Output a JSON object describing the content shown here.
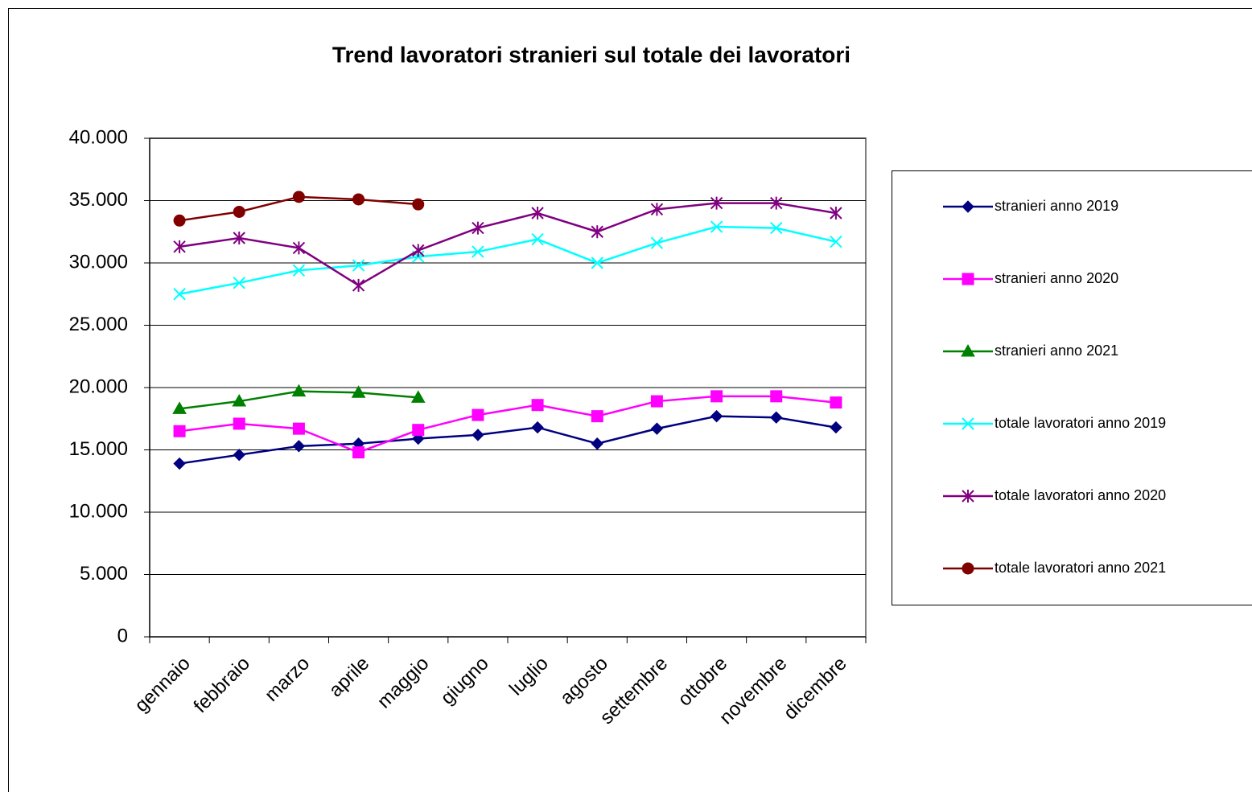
{
  "chart_data": {
    "type": "line",
    "title": "Trend lavoratori stranieri sul totale dei lavoratori",
    "categories": [
      "gennaio",
      "febbraio",
      "marzo",
      "aprile",
      "maggio",
      "giugno",
      "luglio",
      "agosto",
      "settembre",
      "ottobre",
      "novembre",
      "dicembre"
    ],
    "series": [
      {
        "name": "stranieri anno 2019",
        "color": "#000080",
        "marker": "diamond",
        "values": [
          13900,
          14600,
          15300,
          15500,
          15900,
          16200,
          16800,
          15500,
          16700,
          17700,
          17600,
          16800
        ]
      },
      {
        "name": "stranieri anno 2020",
        "color": "#ff00ff",
        "marker": "square",
        "values": [
          16500,
          17100,
          16700,
          14800,
          16600,
          17800,
          18600,
          17700,
          18900,
          19300,
          19300,
          18800
        ]
      },
      {
        "name": "stranieri anno 2021",
        "color": "#008000",
        "marker": "triangle",
        "values": [
          18300,
          18900,
          19700,
          19600,
          19200,
          null,
          null,
          null,
          null,
          null,
          null,
          null
        ]
      },
      {
        "name": "totale lavoratori anno 2019",
        "color": "#00ffff",
        "marker": "x",
        "values": [
          27500,
          28400,
          29400,
          29800,
          30500,
          30900,
          31900,
          30000,
          31600,
          32900,
          32800,
          31700
        ]
      },
      {
        "name": "totale lavoratori anno 2020",
        "color": "#800080",
        "marker": "asterisk",
        "values": [
          31300,
          32000,
          31200,
          28200,
          31000,
          32800,
          34000,
          32500,
          34300,
          34800,
          34800,
          34000
        ]
      },
      {
        "name": "totale lavoratori anno 2021",
        "color": "#800000",
        "marker": "circle",
        "values": [
          33400,
          34100,
          35300,
          35100,
          34700,
          null,
          null,
          null,
          null,
          null,
          null,
          null
        ]
      }
    ],
    "ylim": [
      0,
      40000
    ],
    "yticks": [
      0,
      {
        "value": 5000,
        "label": "5.000"
      },
      {
        "value": 10000,
        "label": "10.000"
      },
      {
        "value": 15000,
        "label": "15.000"
      },
      {
        "value": 20000,
        "label": "20.000"
      },
      {
        "value": 25000,
        "label": "25.000"
      },
      {
        "value": 30000,
        "label": "30.000"
      },
      {
        "value": 35000,
        "label": "35.000"
      },
      {
        "value": 40000,
        "label": "40.000"
      }
    ],
    "grid": true,
    "legend": "right"
  }
}
